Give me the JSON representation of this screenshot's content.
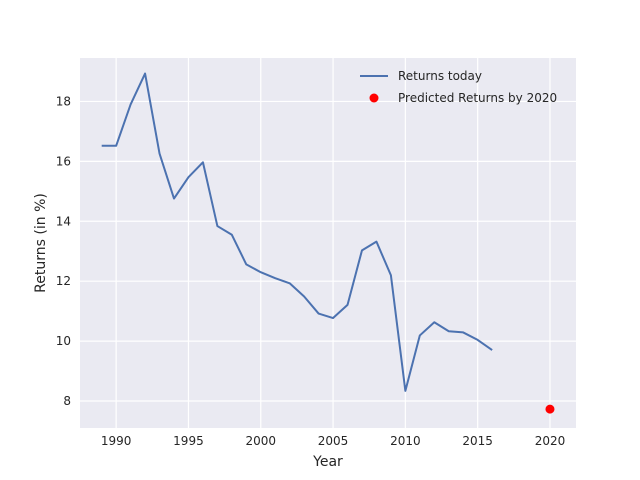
{
  "chart_data": {
    "type": "line",
    "title": "",
    "xlabel": "Year",
    "ylabel": "Returns (in %)",
    "xlim": [
      1987.5,
      2021.8
    ],
    "ylim": [
      7.1,
      19.45
    ],
    "xticks": [
      1990,
      1995,
      2000,
      2005,
      2010,
      2015,
      2020
    ],
    "yticks": [
      8,
      10,
      12,
      14,
      16,
      18
    ],
    "grid": true,
    "legend_position": "top-right",
    "colors": {
      "background": "#eaeaf2",
      "grid": "#ffffff",
      "line": "#4c72b0",
      "point": "#ff0000"
    },
    "series": [
      {
        "name": "Returns today",
        "kind": "line",
        "x": [
          1989,
          1990,
          1991,
          1992,
          1993,
          1994,
          1995,
          1996,
          1997,
          1998,
          1999,
          2000,
          2001,
          2002,
          2003,
          2004,
          2005,
          2006,
          2007,
          2008,
          2009,
          2010,
          2011,
          2012,
          2013,
          2014,
          2015,
          2016
        ],
        "y": [
          16.52,
          16.52,
          17.9,
          18.93,
          16.26,
          14.76,
          15.47,
          15.97,
          13.84,
          13.55,
          12.56,
          12.3,
          12.1,
          11.93,
          11.49,
          10.92,
          10.77,
          11.21,
          13.03,
          13.32,
          12.2,
          8.34,
          10.19,
          10.63,
          10.33,
          10.29,
          10.04,
          9.7
        ]
      },
      {
        "name": "Predicted Returns by 2020",
        "kind": "scatter",
        "x": [
          2020
        ],
        "y": [
          7.73
        ]
      }
    ]
  }
}
